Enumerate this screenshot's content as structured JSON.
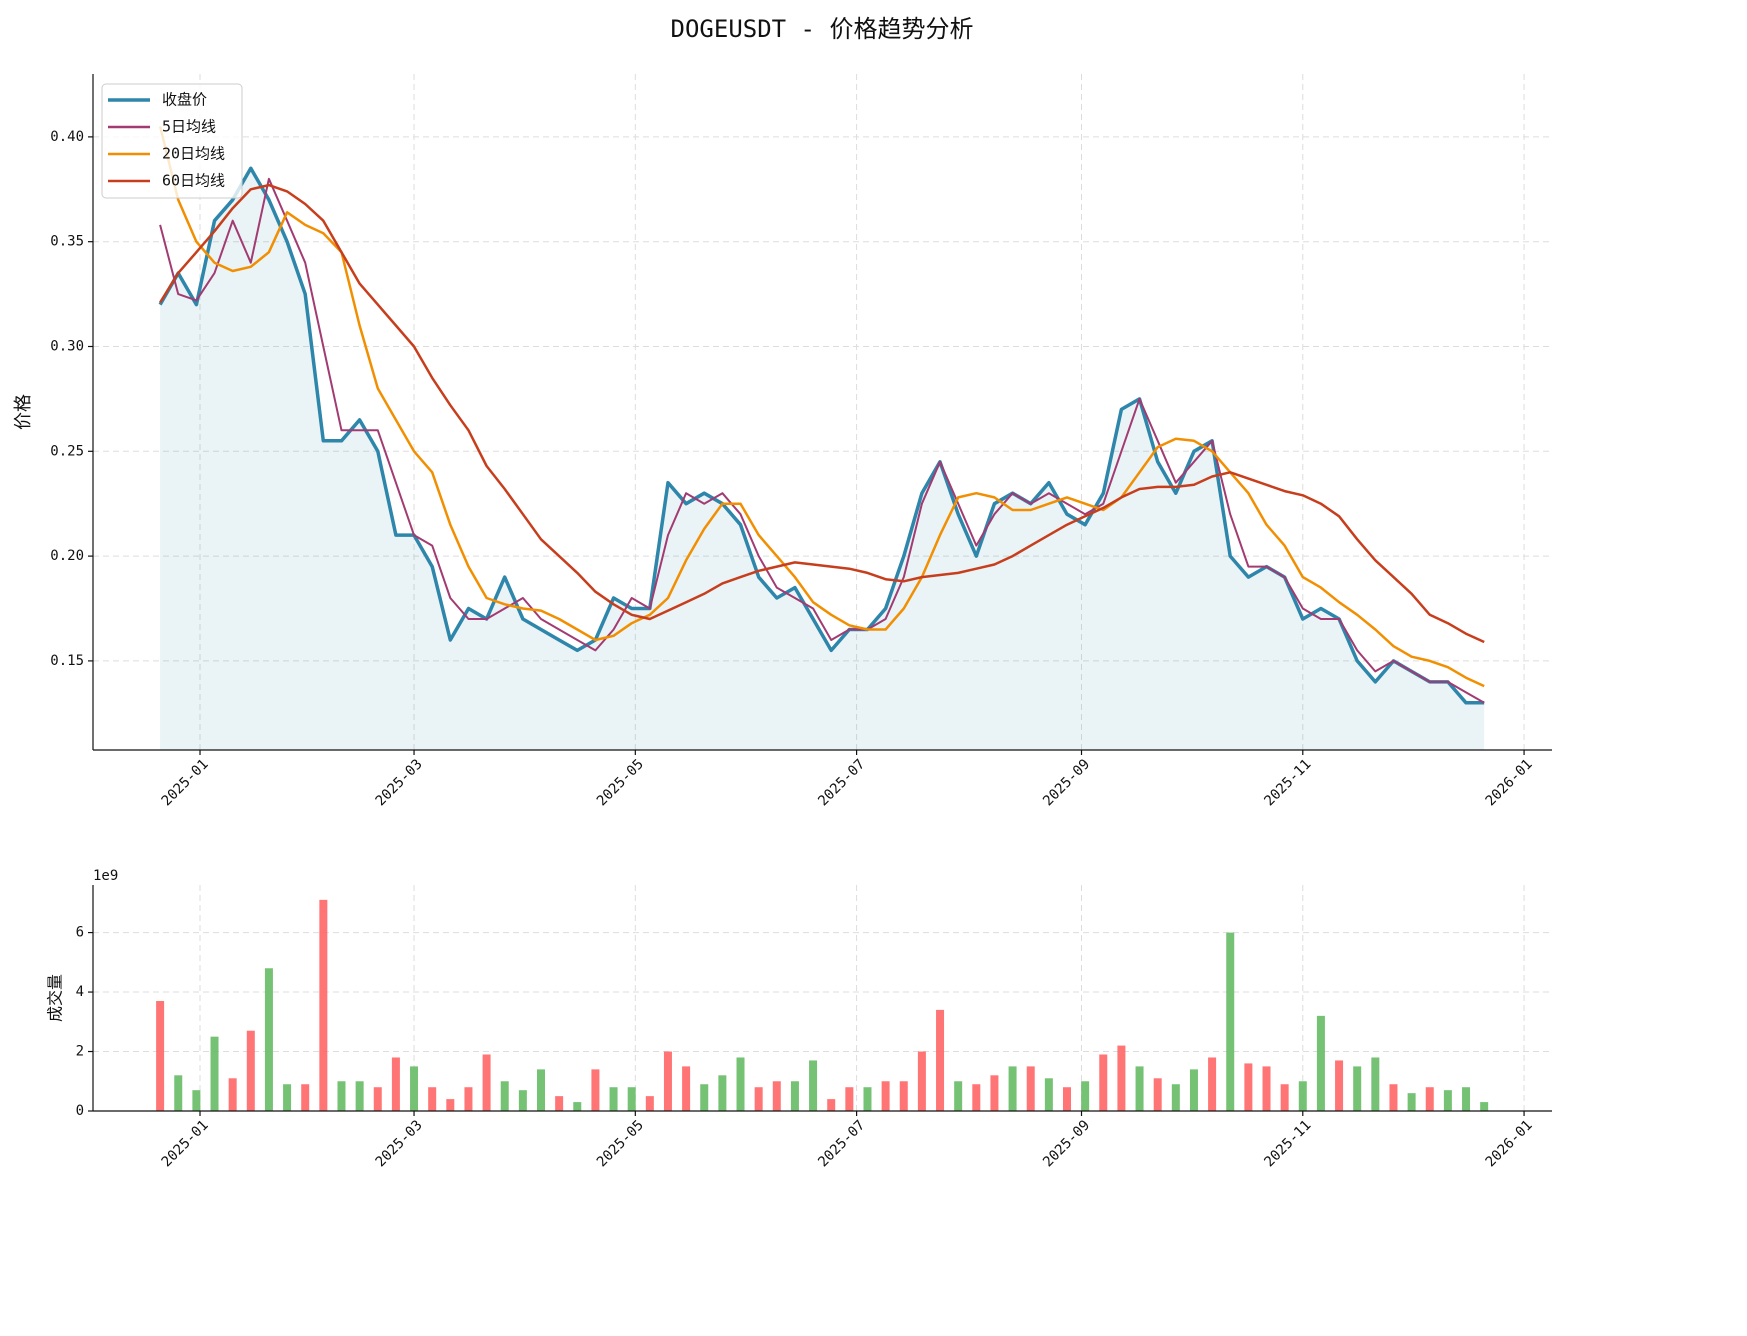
{
  "chart_data": [
    {
      "type": "line",
      "title": "DOGEUSDT - 价格趋势分析",
      "ylabel": "价格",
      "x": [
        -11,
        -6,
        -1,
        4,
        9,
        14,
        19,
        24,
        29,
        34,
        39,
        44,
        49,
        54,
        59,
        64,
        69,
        74,
        79,
        84,
        89,
        94,
        99,
        104,
        109,
        114,
        119,
        124,
        129,
        134,
        139,
        144,
        149,
        154,
        159,
        164,
        169,
        174,
        179,
        184,
        189,
        194,
        199,
        204,
        209,
        214,
        219,
        224,
        229,
        234,
        239,
        244,
        249,
        254,
        259,
        264,
        269,
        274,
        279,
        284,
        289,
        294,
        299,
        304,
        309,
        314,
        319,
        324,
        329,
        334,
        339,
        344,
        349,
        354
      ],
      "series": [
        {
          "name": "收盘价",
          "color": "#2e86ab",
          "fill": true,
          "values": [
            0.32,
            0.335,
            0.32,
            0.36,
            0.37,
            0.385,
            0.37,
            0.35,
            0.325,
            0.255,
            0.255,
            0.265,
            0.25,
            0.21,
            0.21,
            0.195,
            0.16,
            0.175,
            0.17,
            0.19,
            0.17,
            0.165,
            0.16,
            0.155,
            0.16,
            0.18,
            0.175,
            0.175,
            0.235,
            0.225,
            0.23,
            0.225,
            0.215,
            0.19,
            0.18,
            0.185,
            0.17,
            0.155,
            0.165,
            0.165,
            0.175,
            0.2,
            0.23,
            0.245,
            0.22,
            0.2,
            0.225,
            0.23,
            0.225,
            0.235,
            0.22,
            0.215,
            0.23,
            0.27,
            0.275,
            0.245,
            0.23,
            0.25,
            0.255,
            0.2,
            0.19,
            0.195,
            0.19,
            0.17,
            0.175,
            0.17,
            0.15,
            0.14,
            0.15,
            0.145,
            0.14,
            0.14,
            0.13,
            0.13
          ]
        },
        {
          "name": "5日均线",
          "color": "#a23b72",
          "values": [
            0.358,
            0.325,
            0.322,
            0.335,
            0.36,
            0.34,
            0.38,
            0.36,
            0.34,
            0.3,
            0.26,
            0.26,
            0.26,
            0.235,
            0.21,
            0.205,
            0.18,
            0.17,
            0.17,
            0.175,
            0.18,
            0.17,
            0.165,
            0.16,
            0.155,
            0.165,
            0.18,
            0.175,
            0.21,
            0.23,
            0.225,
            0.23,
            0.22,
            0.2,
            0.185,
            0.18,
            0.175,
            0.16,
            0.165,
            0.165,
            0.17,
            0.19,
            0.225,
            0.245,
            0.225,
            0.205,
            0.22,
            0.23,
            0.225,
            0.23,
            0.225,
            0.22,
            0.225,
            0.25,
            0.275,
            0.255,
            0.235,
            0.245,
            0.255,
            0.22,
            0.195,
            0.195,
            0.19,
            0.175,
            0.17,
            0.17,
            0.155,
            0.145,
            0.15,
            0.145,
            0.14,
            0.14,
            0.135,
            0.13
          ]
        },
        {
          "name": "20日均线",
          "color": "#f18f01",
          "values": [
            0.405,
            0.37,
            0.35,
            0.34,
            0.336,
            0.338,
            0.345,
            0.364,
            0.358,
            0.354,
            0.345,
            0.31,
            0.28,
            0.265,
            0.25,
            0.24,
            0.215,
            0.195,
            0.18,
            0.177,
            0.175,
            0.174,
            0.17,
            0.165,
            0.16,
            0.162,
            0.168,
            0.172,
            0.18,
            0.198,
            0.213,
            0.225,
            0.225,
            0.21,
            0.2,
            0.19,
            0.178,
            0.172,
            0.167,
            0.165,
            0.165,
            0.175,
            0.19,
            0.21,
            0.228,
            0.23,
            0.228,
            0.222,
            0.222,
            0.225,
            0.228,
            0.225,
            0.222,
            0.228,
            0.24,
            0.252,
            0.256,
            0.255,
            0.25,
            0.24,
            0.23,
            0.215,
            0.205,
            0.19,
            0.185,
            0.178,
            0.172,
            0.165,
            0.157,
            0.152,
            0.15,
            0.147,
            0.142,
            0.138
          ]
        },
        {
          "name": "60日均线",
          "color": "#c73e1d",
          "values": [
            0.321,
            0.335,
            0.345,
            0.355,
            0.366,
            0.375,
            0.377,
            0.374,
            0.368,
            0.36,
            0.345,
            0.33,
            0.32,
            0.31,
            0.3,
            0.285,
            0.272,
            0.26,
            0.243,
            0.232,
            0.22,
            0.208,
            0.2,
            0.192,
            0.183,
            0.177,
            0.172,
            0.17,
            0.174,
            0.178,
            0.182,
            0.187,
            0.19,
            0.193,
            0.195,
            0.197,
            0.196,
            0.195,
            0.194,
            0.192,
            0.189,
            0.188,
            0.19,
            0.191,
            0.192,
            0.194,
            0.196,
            0.2,
            0.205,
            0.21,
            0.215,
            0.219,
            0.223,
            0.228,
            0.232,
            0.233,
            0.233,
            0.234,
            0.238,
            0.24,
            0.237,
            0.234,
            0.231,
            0.229,
            0.225,
            0.219,
            0.208,
            0.198,
            0.19,
            0.182,
            0.172,
            0.168,
            0.163,
            0.159
          ]
        }
      ],
      "xlim": [
        -29.5,
        372.7
      ],
      "xticks": [
        {
          "value": 0,
          "label": "2025-01"
        },
        {
          "value": 59,
          "label": "2025-03"
        },
        {
          "value": 120,
          "label": "2025-05"
        },
        {
          "value": 181,
          "label": "2025-07"
        },
        {
          "value": 243,
          "label": "2025-09"
        },
        {
          "value": 304,
          "label": "2025-11"
        },
        {
          "value": 365,
          "label": "2026-01"
        }
      ],
      "ylim": [
        0.1075,
        0.43
      ],
      "yticks": [
        0.15,
        {
          "value": 0.2,
          "label": "0.20"
        },
        0.25,
        {
          "value": 0.3,
          "label": "0.30"
        },
        0.35,
        {
          "value": 0.4,
          "label": "0.40"
        }
      ],
      "grid": true,
      "legend": "upper left"
    },
    {
      "type": "bar",
      "ylabel": "成交量",
      "offset_label": "1e9",
      "x": [
        -11,
        -6,
        -1,
        4,
        9,
        14,
        19,
        24,
        29,
        34,
        39,
        44,
        49,
        54,
        59,
        64,
        69,
        74,
        79,
        84,
        89,
        94,
        99,
        104,
        109,
        114,
        119,
        124,
        129,
        134,
        139,
        144,
        149,
        154,
        159,
        164,
        169,
        174,
        179,
        184,
        189,
        194,
        199,
        204,
        209,
        214,
        219,
        224,
        229,
        234,
        239,
        244,
        249,
        254,
        259,
        264,
        269,
        274,
        279,
        284,
        289,
        294,
        299,
        304,
        309,
        314,
        319,
        324,
        329,
        334,
        339,
        344,
        349,
        354
      ],
      "values": [
        3.7,
        1.2,
        0.7,
        2.5,
        1.1,
        2.7,
        4.8,
        0.9,
        0.9,
        7.1,
        1.0,
        1.0,
        0.8,
        1.8,
        1.5,
        0.8,
        0.4,
        0.8,
        1.9,
        1.0,
        0.7,
        1.4,
        0.5,
        0.3,
        1.4,
        0.8,
        0.8,
        0.5,
        2.0,
        1.5,
        0.9,
        1.2,
        1.8,
        0.8,
        1.0,
        1.0,
        1.7,
        0.4,
        0.8,
        0.8,
        1.0,
        1.0,
        2.0,
        3.4,
        1.0,
        0.9,
        1.2,
        1.5,
        1.5,
        1.1,
        0.8,
        1.0,
        1.9,
        2.2,
        1.5,
        1.1,
        0.9,
        1.4,
        1.8,
        6.0,
        1.6,
        1.5,
        0.9,
        1.0,
        3.2,
        1.7,
        1.5,
        1.8,
        0.9,
        0.6,
        0.8,
        0.7,
        0.8,
        0.3
      ],
      "colors": [
        "#f66",
        "#6b6",
        "#6b6",
        "#6b6",
        "#f66",
        "#f66",
        "#6b6",
        "#6b6",
        "#f66",
        "#f66",
        "#6b6",
        "#6b6",
        "#f66",
        "#f66",
        "#6b6",
        "#f66",
        "#f66",
        "#f66",
        "#f66",
        "#6b6",
        "#6b6",
        "#6b6",
        "#f66",
        "#6b6",
        "#f66",
        "#6b6",
        "#6b6",
        "#f66",
        "#f66",
        "#f66",
        "#6b6",
        "#6b6",
        "#6b6",
        "#f66",
        "#f66",
        "#6b6",
        "#6b6",
        "#f66",
        "#f66",
        "#6b6",
        "#f66",
        "#f66",
        "#f66",
        "#f66",
        "#6b6",
        "#f66",
        "#f66",
        "#6b6",
        "#f66",
        "#6b6",
        "#f66",
        "#6b6",
        "#f66",
        "#f66",
        "#6b6",
        "#f66",
        "#6b6",
        "#6b6",
        "#f66",
        "#6b6",
        "#f66",
        "#f66",
        "#f66",
        "#6b6",
        "#6b6",
        "#f66",
        "#6b6",
        "#6b6",
        "#f66",
        "#6b6",
        "#f66",
        "#6b6",
        "#6b6",
        "#6b6"
      ],
      "xlim": [
        -29.5,
        372.7
      ],
      "xticks": [
        {
          "value": 0,
          "label": "2025-01"
        },
        {
          "value": 59,
          "label": "2025-03"
        },
        {
          "value": 120,
          "label": "2025-05"
        },
        {
          "value": 181,
          "label": "2025-07"
        },
        {
          "value": 243,
          "label": "2025-09"
        },
        {
          "value": 304,
          "label": "2025-11"
        },
        {
          "value": 365,
          "label": "2026-01"
        }
      ],
      "ylim": [
        0,
        7.6
      ],
      "yticks": [
        0,
        2,
        4,
        6
      ],
      "grid": true
    }
  ]
}
